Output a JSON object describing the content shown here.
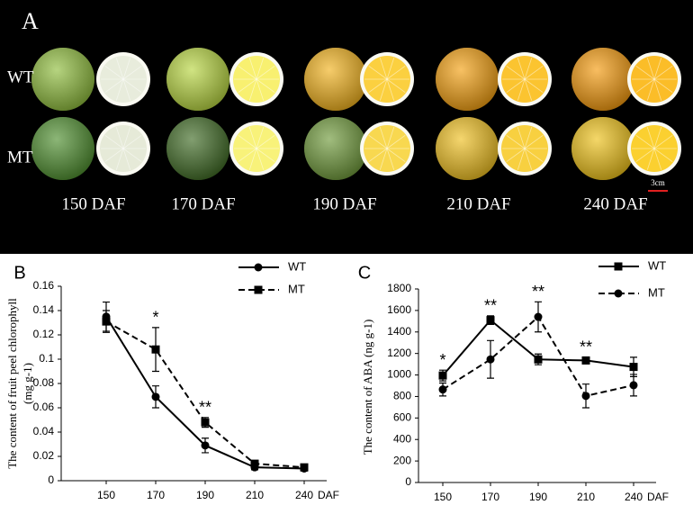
{
  "panel_a": {
    "label": "A",
    "rows": [
      "WT",
      "MT"
    ],
    "stages": [
      "150 DAF",
      "170 DAF",
      "190 DAF",
      "210 DAF",
      "240 DAF"
    ],
    "scale": "3cm"
  },
  "chart_data": [
    {
      "type": "line",
      "label": "B",
      "ylabel": [
        "The content of fruit peel chlorophyll",
        "(mg  g-1)"
      ],
      "categories": [
        "150",
        "170",
        "190",
        "210",
        "240"
      ],
      "xlabel": "DAF",
      "ylim": [
        0,
        0.16
      ],
      "yticks": [
        0,
        0.02,
        0.04,
        0.06,
        0.08,
        0.1,
        0.12,
        0.14,
        0.16
      ],
      "series": [
        {
          "name": "WT",
          "color": "#000000",
          "marker": "circle",
          "dashed": false,
          "values": [
            0.135,
            0.069,
            0.029,
            0.011,
            0.01
          ],
          "errors": [
            0.012,
            0.009,
            0.006,
            0.002,
            0.002
          ]
        },
        {
          "name": "MT",
          "color": "#000000",
          "marker": "square",
          "dashed": true,
          "values": [
            0.131,
            0.108,
            0.048,
            0.014,
            0.011
          ],
          "errors": [
            0.009,
            0.018,
            0.004,
            0.002,
            0.002
          ]
        }
      ],
      "significance": [
        null,
        "*",
        "**",
        null,
        null
      ]
    },
    {
      "type": "line",
      "label": "C",
      "ylabel": [
        "The content of ABA  (ng  g-1)"
      ],
      "categories": [
        "150",
        "170",
        "190",
        "210",
        "240"
      ],
      "xlabel": "DAF",
      "ylim": [
        0,
        1800
      ],
      "yticks": [
        0,
        200,
        400,
        600,
        800,
        1000,
        1200,
        1400,
        1600,
        1800
      ],
      "series": [
        {
          "name": "WT",
          "color": "#000000",
          "marker": "square",
          "dashed": false,
          "values": [
            995,
            1510,
            1145,
            1135,
            1075
          ],
          "errors": [
            50,
            40,
            50,
            30,
            90
          ]
        },
        {
          "name": "MT",
          "color": "#000000",
          "marker": "circle",
          "dashed": true,
          "values": [
            865,
            1145,
            1540,
            805,
            905
          ],
          "errors": [
            60,
            175,
            140,
            110,
            100
          ]
        }
      ],
      "significance": [
        "*",
        "**",
        "**",
        "**",
        null
      ]
    }
  ]
}
